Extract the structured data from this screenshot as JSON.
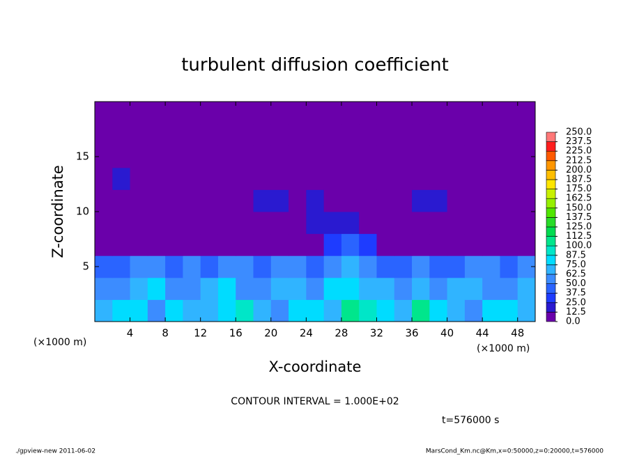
{
  "chart_data": {
    "type": "heatmap",
    "title": "turbulent diffusion coefficient",
    "x_label": "X-coordinate",
    "y_label": "Z-coordinate",
    "x_unit_left": "(×1000 m)",
    "x_unit_right": "(×1000 m)",
    "contour_note": "CONTOUR INTERVAL = 1.000E+02",
    "time_note": "t=576000 s",
    "footer_left": "./gpview-new  2011-06-02",
    "footer_right": "MarsCond_Km.nc@Km,x=0:50000,z=0:20000,t=576000",
    "xlim": [
      0,
      50
    ],
    "ylim": [
      0,
      20
    ],
    "xticks": [
      4,
      8,
      12,
      16,
      20,
      24,
      28,
      32,
      36,
      40,
      44,
      48
    ],
    "yticks": [
      5,
      10,
      15
    ],
    "z": [
      [
        70,
        80,
        75,
        60,
        85,
        70,
        65,
        80,
        90,
        70,
        60,
        75,
        80,
        70,
        110,
        95,
        75,
        70,
        105,
        80,
        70,
        60,
        75,
        80,
        70
      ],
      [
        55,
        60,
        70,
        75,
        60,
        55,
        70,
        75,
        60,
        55,
        65,
        70,
        60,
        75,
        85,
        70,
        65,
        55,
        70,
        60,
        65,
        70,
        55,
        60,
        65
      ],
      [
        40,
        45,
        55,
        50,
        40,
        50,
        45,
        55,
        50,
        45,
        50,
        55,
        45,
        50,
        65,
        55,
        45,
        40,
        50,
        45,
        40,
        55,
        50,
        45,
        50
      ],
      [
        5,
        10,
        8,
        5,
        5,
        5,
        5,
        5,
        5,
        5,
        5,
        5,
        5,
        30,
        40,
        35,
        8,
        5,
        5,
        5,
        5,
        5,
        5,
        10,
        5
      ],
      [
        5,
        8,
        10,
        8,
        5,
        8,
        5,
        5,
        5,
        10,
        8,
        12,
        15,
        18,
        14,
        10,
        8,
        5,
        8,
        5,
        5,
        5,
        10,
        8,
        5
      ],
      [
        8,
        10,
        12,
        8,
        5,
        5,
        5,
        5,
        12,
        18,
        15,
        10,
        15,
        10,
        8,
        8,
        10,
        5,
        15,
        15,
        5,
        8,
        5,
        10,
        5
      ],
      [
        10,
        15,
        12,
        10,
        8,
        5,
        5,
        5,
        5,
        10,
        12,
        8,
        5,
        5,
        5,
        5,
        5,
        8,
        10,
        5,
        5,
        5,
        5,
        8,
        5
      ],
      [
        5,
        8,
        5,
        5,
        5,
        5,
        5,
        5,
        5,
        5,
        5,
        5,
        5,
        5,
        5,
        5,
        5,
        5,
        5,
        5,
        5,
        5,
        5,
        8,
        5
      ],
      [
        3,
        3,
        3,
        3,
        3,
        3,
        3,
        3,
        3,
        3,
        3,
        3,
        3,
        3,
        3,
        3,
        3,
        3,
        3,
        3,
        3,
        3,
        3,
        3,
        3
      ],
      [
        3,
        3,
        3,
        3,
        3,
        3,
        3,
        3,
        3,
        3,
        3,
        3,
        3,
        3,
        3,
        3,
        3,
        3,
        3,
        3,
        3,
        3,
        3,
        3,
        3
      ]
    ],
    "colorbar": {
      "levels": [
        {
          "value": 0,
          "label": "0.0"
        },
        {
          "value": 12.5,
          "label": "12.5"
        },
        {
          "value": 25,
          "label": "25.0"
        },
        {
          "value": 37.5,
          "label": "37.5"
        },
        {
          "value": 50,
          "label": "50.0"
        },
        {
          "value": 62.5,
          "label": "62.5"
        },
        {
          "value": 75,
          "label": "75.0"
        },
        {
          "value": 87.5,
          "label": "87.5"
        },
        {
          "value": 100,
          "label": "100.0"
        },
        {
          "value": 112.5,
          "label": "112.5"
        },
        {
          "value": 125,
          "label": "125.0"
        },
        {
          "value": 137.5,
          "label": "137.5"
        },
        {
          "value": 150,
          "label": "150.0"
        },
        {
          "value": 162.5,
          "label": "162.5"
        },
        {
          "value": 175,
          "label": "175.0"
        },
        {
          "value": 187.5,
          "label": "187.5"
        },
        {
          "value": 200,
          "label": "200.0"
        },
        {
          "value": 212.5,
          "label": "212.5"
        },
        {
          "value": 225,
          "label": "225.0"
        },
        {
          "value": 237.5,
          "label": "237.5"
        },
        {
          "value": 250,
          "label": "250.0"
        }
      ],
      "colors": [
        "#6a00aa",
        "#2a1ad0",
        "#1e3cff",
        "#2a64ff",
        "#3c8cff",
        "#30b4ff",
        "#00dcff",
        "#00e6c8",
        "#00e68c",
        "#00dc50",
        "#28dc28",
        "#50e600",
        "#96f000",
        "#c8f000",
        "#ffe600",
        "#ffbe00",
        "#ff9600",
        "#ff5a00",
        "#ff1e1e",
        "#ff7878"
      ]
    }
  }
}
